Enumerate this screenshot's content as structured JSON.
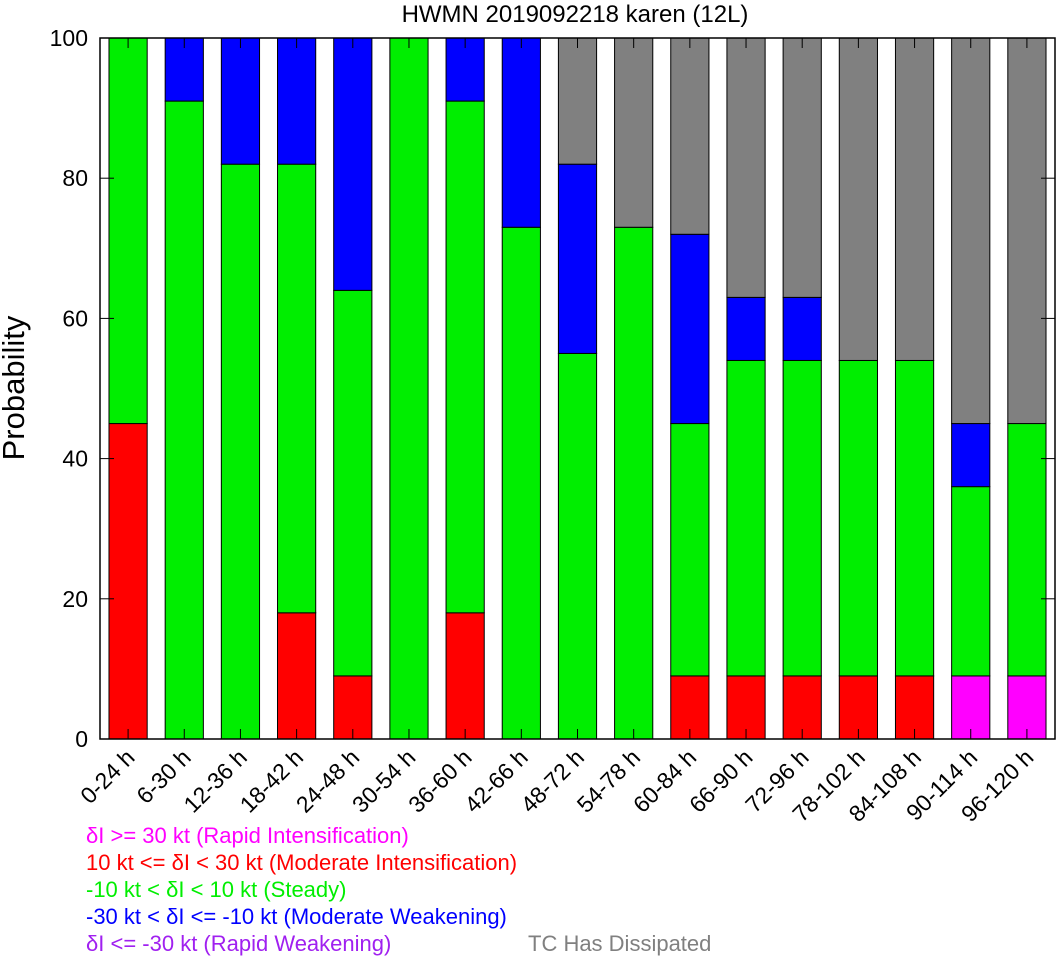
{
  "chart_data": {
    "type": "bar",
    "stacked": true,
    "title": "HWMN 2019092218 karen (12L)",
    "xlabel": "",
    "ylabel": "Probability",
    "ylim": [
      0,
      100
    ],
    "yticks": [
      0,
      20,
      40,
      60,
      80,
      100
    ],
    "grid": false,
    "categories": [
      "0-24 h",
      "6-30 h",
      "12-36 h",
      "18-42 h",
      "24-48 h",
      "30-54 h",
      "36-60 h",
      "42-66 h",
      "48-72 h",
      "54-78 h",
      "60-84 h",
      "66-90 h",
      "72-96 h",
      "78-102 h",
      "84-108 h",
      "90-114 h",
      "96-120 h"
    ],
    "series": [
      {
        "key": "ri",
        "color": "#ff00ff",
        "values": [
          0,
          0,
          0,
          0,
          0,
          0,
          0,
          0,
          0,
          0,
          0,
          0,
          0,
          0,
          0,
          9,
          9
        ]
      },
      {
        "key": "mi",
        "color": "#ff0000",
        "values": [
          45,
          0,
          0,
          18,
          9,
          0,
          18,
          0,
          0,
          0,
          9,
          9,
          9,
          9,
          9,
          0,
          0
        ]
      },
      {
        "key": "steady",
        "color": "#00ee00",
        "values": [
          55,
          91,
          82,
          64,
          55,
          100,
          73,
          73,
          55,
          73,
          36,
          45,
          45,
          45,
          45,
          27,
          36
        ]
      },
      {
        "key": "mw",
        "color": "#0000ff",
        "values": [
          0,
          9,
          18,
          18,
          36,
          0,
          9,
          27,
          27,
          0,
          27,
          9,
          9,
          0,
          0,
          9,
          0
        ]
      },
      {
        "key": "rw",
        "color": "#a020f0",
        "values": [
          0,
          0,
          0,
          0,
          0,
          0,
          0,
          0,
          0,
          0,
          0,
          0,
          0,
          0,
          0,
          0,
          0
        ]
      },
      {
        "key": "dissipated",
        "color": "#808080",
        "values": [
          0,
          0,
          0,
          0,
          0,
          0,
          0,
          0,
          18,
          27,
          28,
          37,
          37,
          46,
          46,
          55,
          55
        ]
      }
    ]
  },
  "legend": [
    {
      "text": "δI >= 30 kt (Rapid Intensification)",
      "color": "#ff00ff"
    },
    {
      "text": "10 kt <= δI < 30 kt (Moderate Intensification)",
      "color": "#ff0000"
    },
    {
      "text": "-10 kt < δI < 10 kt (Steady)",
      "color": "#00ee00"
    },
    {
      "text": "-30 kt < δI <= -10 kt (Moderate Weakening)",
      "color": "#0000ff"
    },
    {
      "text": "δI <= -30 kt (Rapid Weakening)",
      "color": "#a020f0"
    }
  ],
  "dissipated_label": {
    "text": "TC Has Dissipated",
    "color": "#808080"
  }
}
